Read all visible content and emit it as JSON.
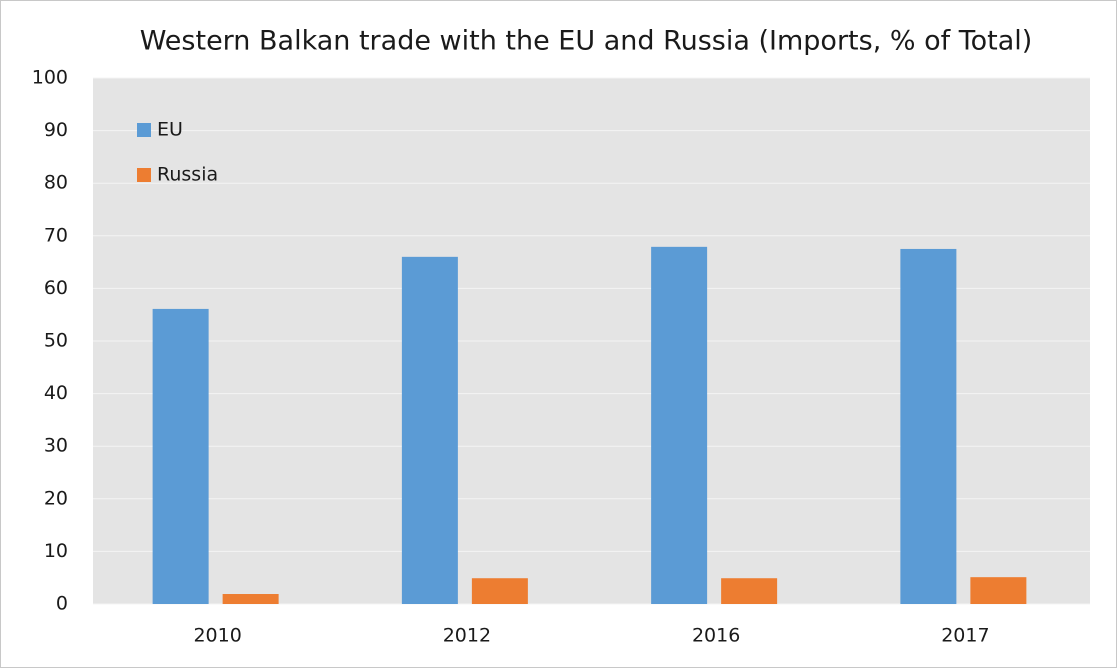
{
  "chart_data": {
    "type": "bar",
    "title": "Western Balkan trade with the EU and Russia (Imports, % of Total)",
    "categories": [
      "2010",
      "2012",
      "2016",
      "2017"
    ],
    "series": [
      {
        "name": "EU",
        "color": "#5b9bd5",
        "values": [
          56.1,
          66.0,
          67.9,
          67.5
        ]
      },
      {
        "name": "Russia",
        "color": "#ed7d31",
        "values": [
          1.9,
          4.9,
          4.9,
          5.1
        ]
      }
    ],
    "ylim": [
      0,
      100
    ],
    "yticks": [
      0,
      10,
      20,
      30,
      40,
      50,
      60,
      70,
      80,
      90,
      100
    ],
    "grid": true,
    "legend": "upper-left"
  }
}
